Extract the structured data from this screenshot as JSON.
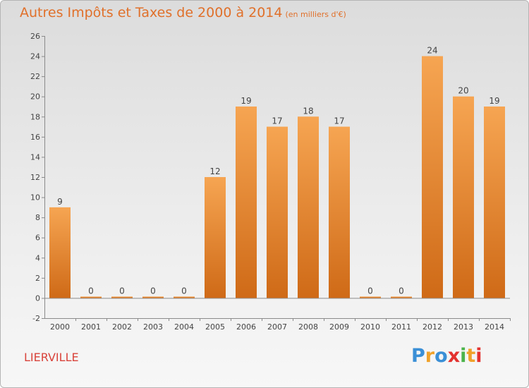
{
  "title": "Autres Impôts et Taxes de 2000 à 2014",
  "subtitle": "(en milliers d'€)",
  "commune": "LIERVILLE",
  "logo": {
    "text": "Proxiti",
    "letters": [
      "P",
      "r",
      "o",
      "x",
      "i",
      "t",
      "i"
    ],
    "colors": [
      "#3a8fd6",
      "#f0a22a",
      "#3a8fd6",
      "#e3322f",
      "#4bb34b",
      "#f0a22a",
      "#e3322f"
    ]
  },
  "colors": {
    "bar_top": "#f6a552",
    "bar_bottom": "#cf6a17",
    "title": "#e0702a",
    "commune": "#d9433b"
  },
  "chart_data": {
    "type": "bar",
    "categories": [
      "2000",
      "2001",
      "2002",
      "2003",
      "2004",
      "2005",
      "2006",
      "2007",
      "2008",
      "2009",
      "2010",
      "2011",
      "2012",
      "2013",
      "2014"
    ],
    "values": [
      9,
      0,
      0,
      0,
      0,
      12,
      19,
      17,
      18,
      17,
      0,
      0,
      24,
      20,
      19
    ],
    "data_labels": [
      "9",
      "0",
      "0",
      "0",
      "0",
      "12",
      "19",
      "17",
      "18",
      "17",
      "0",
      "0",
      "24",
      "20",
      "19"
    ],
    "yticks": [
      "-2",
      "0",
      "2",
      "4",
      "6",
      "8",
      "10",
      "12",
      "14",
      "16",
      "18",
      "20",
      "22",
      "24",
      "26"
    ],
    "ylim": [
      -2,
      26
    ],
    "grid": false,
    "legend": "none",
    "xlabel": "",
    "ylabel": ""
  }
}
